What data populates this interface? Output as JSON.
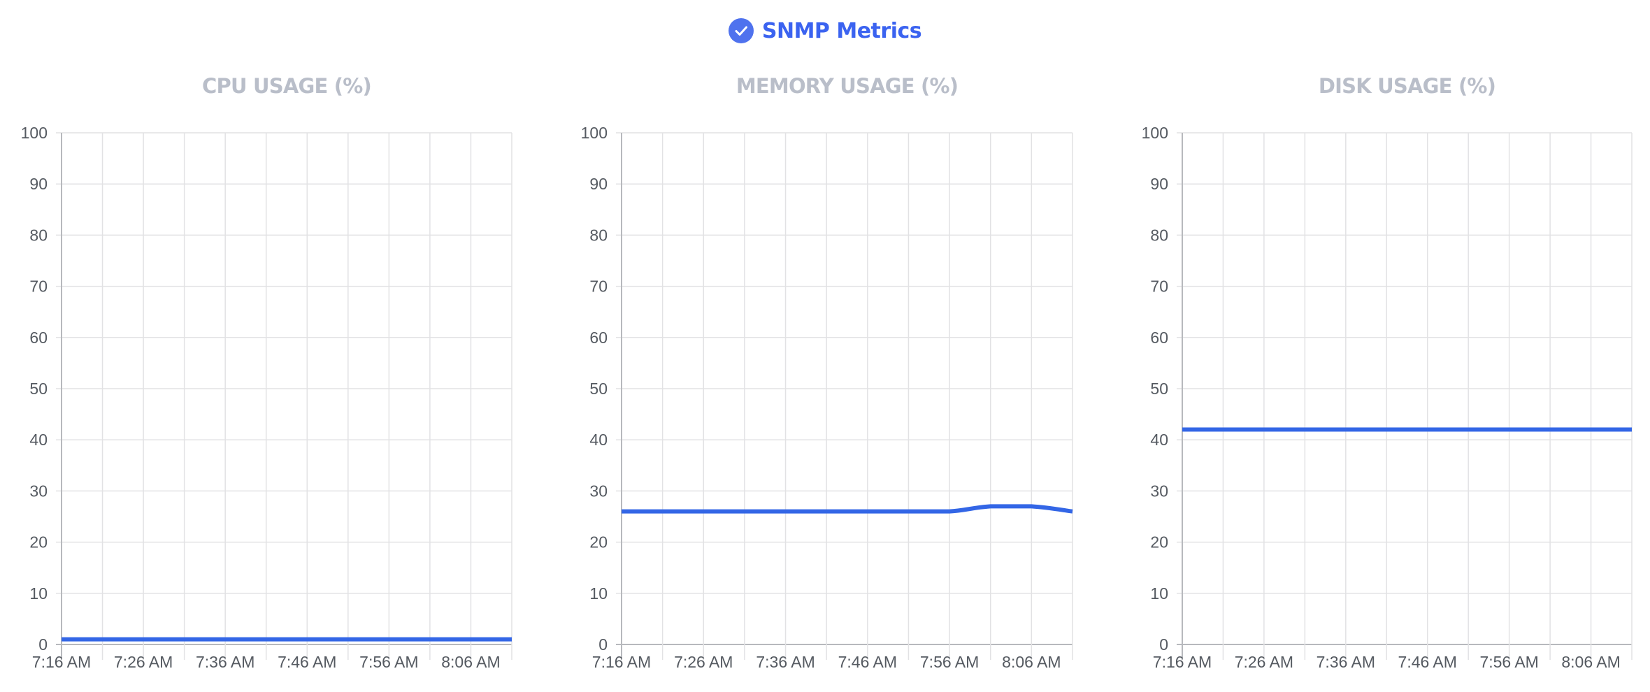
{
  "header": {
    "title": "SNMP Metrics",
    "icon": "check-circle-icon",
    "accent_color": "#3b63f0"
  },
  "chart_data": [
    {
      "type": "line",
      "title": "CPU USAGE (%)",
      "xlabel": "",
      "ylabel": "",
      "x_tick_labels": [
        "7:16 AM",
        "7:26 AM",
        "7:36 AM",
        "7:46 AM",
        "7:56 AM",
        "8:06 AM"
      ],
      "y_ticks": [
        0,
        10,
        20,
        30,
        40,
        50,
        60,
        70,
        80,
        90,
        100
      ],
      "ylim": [
        0,
        100
      ],
      "grid": true,
      "line_color": "#3366e6",
      "series": [
        {
          "x": [
            "7:16 AM",
            "7:21 AM",
            "7:26 AM",
            "7:31 AM",
            "7:36 AM",
            "7:41 AM",
            "7:46 AM",
            "7:51 AM",
            "7:56 AM",
            "8:01 AM",
            "8:06 AM",
            "8:11 AM"
          ],
          "values": [
            1,
            1,
            1,
            1,
            1,
            1,
            1,
            1,
            1,
            1,
            1,
            1
          ]
        }
      ]
    },
    {
      "type": "line",
      "title": "MEMORY USAGE (%)",
      "xlabel": "",
      "ylabel": "",
      "x_tick_labels": [
        "7:16 AM",
        "7:26 AM",
        "7:36 AM",
        "7:46 AM",
        "7:56 AM",
        "8:06 AM"
      ],
      "y_ticks": [
        0,
        10,
        20,
        30,
        40,
        50,
        60,
        70,
        80,
        90,
        100
      ],
      "ylim": [
        0,
        100
      ],
      "grid": true,
      "line_color": "#3366e6",
      "series": [
        {
          "x": [
            "7:16 AM",
            "7:21 AM",
            "7:26 AM",
            "7:31 AM",
            "7:36 AM",
            "7:41 AM",
            "7:46 AM",
            "7:51 AM",
            "7:56 AM",
            "8:01 AM",
            "8:06 AM",
            "8:11 AM"
          ],
          "values": [
            26,
            26,
            26,
            26,
            26,
            26,
            26,
            26,
            26,
            27,
            27,
            26
          ]
        }
      ]
    },
    {
      "type": "line",
      "title": "DISK USAGE (%)",
      "xlabel": "",
      "ylabel": "",
      "x_tick_labels": [
        "7:16 AM",
        "7:26 AM",
        "7:36 AM",
        "7:46 AM",
        "7:56 AM",
        "8:06 AM"
      ],
      "y_ticks": [
        0,
        10,
        20,
        30,
        40,
        50,
        60,
        70,
        80,
        90,
        100
      ],
      "ylim": [
        0,
        100
      ],
      "grid": true,
      "line_color": "#3366e6",
      "series": [
        {
          "x": [
            "7:16 AM",
            "7:21 AM",
            "7:26 AM",
            "7:31 AM",
            "7:36 AM",
            "7:41 AM",
            "7:46 AM",
            "7:51 AM",
            "7:56 AM",
            "8:01 AM",
            "8:06 AM",
            "8:11 AM"
          ],
          "values": [
            42,
            42,
            42,
            42,
            42,
            42,
            42,
            42,
            42,
            42,
            42,
            42
          ]
        }
      ]
    }
  ]
}
